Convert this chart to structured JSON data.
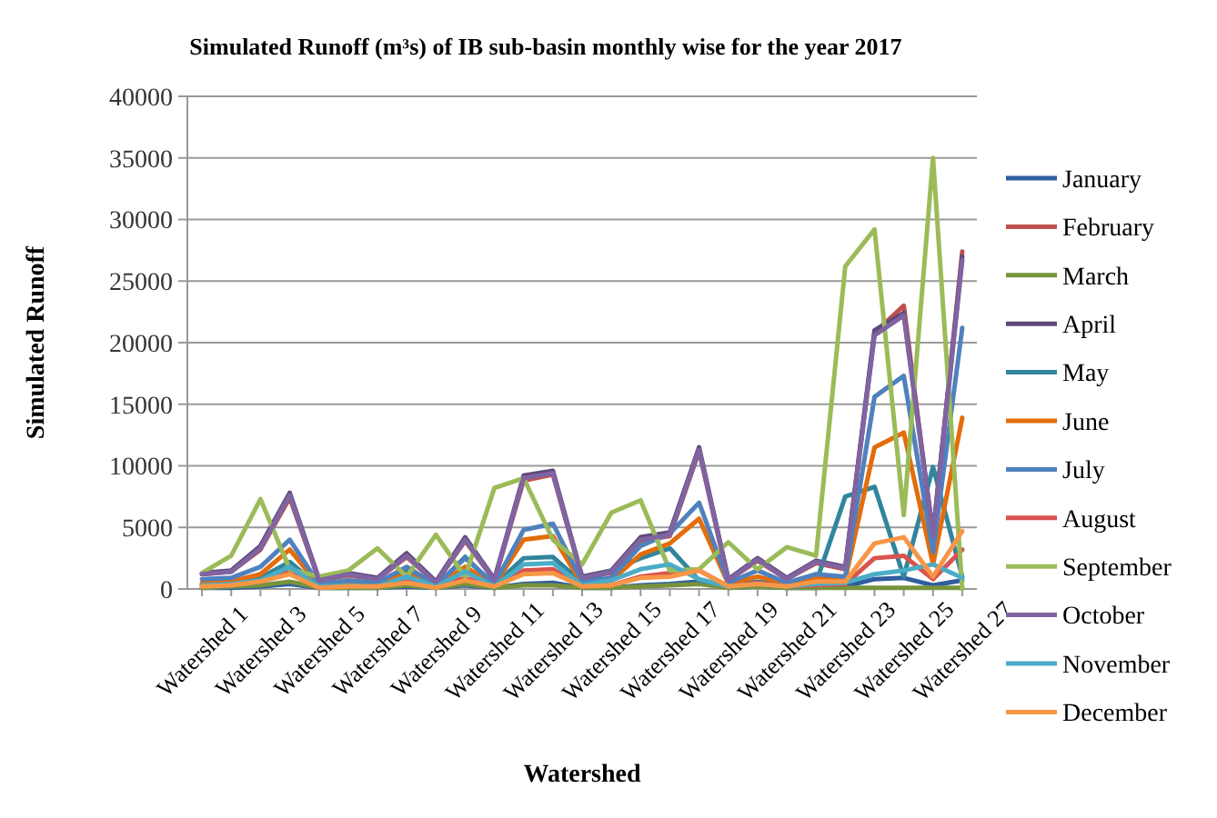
{
  "chart_data": {
    "type": "line",
    "title": "Simulated Runoff (m³s) of IB sub-basin monthly wise for the year 2017",
    "xlabel": "Watershed",
    "ylabel": "Simulated Runoff",
    "categories": [
      "Watershed 1",
      null,
      "Watershed 3",
      null,
      "Watershed 5",
      null,
      "Watershed 7",
      null,
      "Watershed 9",
      null,
      "Watershed 11",
      null,
      "Watershed 13",
      null,
      "Watershed 15",
      null,
      "Watershed 17",
      null,
      "Watershed 19",
      null,
      "Watershed 21",
      null,
      "Watershed 23",
      null,
      "Watershed 25",
      null,
      "Watershed 27"
    ],
    "ylim": [
      0,
      40000
    ],
    "yticks": [
      0,
      5000,
      10000,
      15000,
      20000,
      25000,
      30000,
      35000,
      40000
    ],
    "grid": "y",
    "legend": "right",
    "marker": "none",
    "line_style": "solid",
    "series": [
      {
        "name": "January",
        "color": "#2f5d9e",
        "values": [
          100,
          100,
          200,
          400,
          100,
          100,
          100,
          200,
          100,
          300,
          100,
          400,
          500,
          100,
          100,
          300,
          400,
          600,
          100,
          200,
          100,
          100,
          200,
          800,
          900,
          300,
          700
        ]
      },
      {
        "name": "February",
        "color": "#c0504d",
        "values": [
          1200,
          1400,
          3200,
          7400,
          700,
          1100,
          800,
          2600,
          500,
          3900,
          700,
          8800,
          9300,
          900,
          1300,
          3900,
          4300,
          11200,
          700,
          2300,
          800,
          2100,
          1600,
          20800,
          23000,
          4200,
          27400
        ]
      },
      {
        "name": "March",
        "color": "#77933c",
        "values": [
          100,
          200,
          300,
          600,
          100,
          100,
          100,
          300,
          100,
          400,
          100,
          300,
          300,
          100,
          100,
          200,
          300,
          400,
          100,
          200,
          100,
          100,
          100,
          100,
          100,
          100,
          100
        ]
      },
      {
        "name": "April",
        "color": "#5f497a",
        "values": [
          1300,
          1500,
          3500,
          7800,
          800,
          1300,
          900,
          2900,
          600,
          4200,
          800,
          9200,
          9600,
          1000,
          1500,
          4200,
          4600,
          11500,
          800,
          2500,
          900,
          2300,
          1800,
          21000,
          22400,
          4500,
          27000
        ]
      },
      {
        "name": "May",
        "color": "#31859c",
        "values": [
          400,
          500,
          900,
          2200,
          200,
          400,
          300,
          1500,
          200,
          2600,
          300,
          2500,
          2600,
          500,
          1500,
          2500,
          3300,
          700,
          300,
          600,
          300,
          500,
          7500,
          8300,
          1000,
          9900,
          1000
        ]
      },
      {
        "name": "June",
        "color": "#e46c0a",
        "values": [
          500,
          600,
          1200,
          3200,
          300,
          500,
          400,
          1200,
          200,
          1800,
          300,
          4000,
          4300,
          400,
          700,
          2800,
          3700,
          5700,
          400,
          1000,
          400,
          900,
          800,
          11500,
          12700,
          2000,
          13900
        ]
      },
      {
        "name": "July",
        "color": "#4f81bd",
        "values": [
          800,
          900,
          1800,
          4000,
          400,
          700,
          500,
          1800,
          300,
          2500,
          400,
          4800,
          5300,
          600,
          900,
          3500,
          4500,
          7000,
          500,
          1500,
          500,
          1200,
          1000,
          15600,
          17300,
          3000,
          21200
        ]
      },
      {
        "name": "August",
        "color": "#d9534f",
        "values": [
          300,
          300,
          700,
          1500,
          200,
          300,
          200,
          600,
          200,
          900,
          200,
          1500,
          1600,
          200,
          300,
          1000,
          1300,
          1500,
          200,
          500,
          200,
          300,
          400,
          2500,
          2700,
          800,
          3200
        ]
      },
      {
        "name": "September",
        "color": "#9bbb59",
        "values": [
          1300,
          2700,
          7300,
          1600,
          1000,
          1500,
          3300,
          1000,
          4400,
          1000,
          8200,
          9000,
          4000,
          2000,
          6200,
          7200,
          1500,
          1600,
          3800,
          1600,
          3400,
          2700,
          26200,
          29200,
          6000,
          35000,
          0
        ]
      },
      {
        "name": "October",
        "color": "#8064a2",
        "values": [
          1200,
          1400,
          3300,
          7600,
          700,
          1200,
          800,
          2700,
          500,
          4000,
          700,
          9000,
          9400,
          900,
          1400,
          4000,
          4400,
          11300,
          700,
          2400,
          800,
          2200,
          1700,
          20600,
          22200,
          4300,
          26700
        ]
      },
      {
        "name": "November",
        "color": "#4bacc6",
        "values": [
          300,
          400,
          700,
          1800,
          200,
          300,
          200,
          1000,
          200,
          1400,
          200,
          2000,
          2100,
          300,
          700,
          1600,
          2000,
          800,
          200,
          400,
          200,
          400,
          500,
          1200,
          1500,
          2000,
          900
        ]
      },
      {
        "name": "December",
        "color": "#f79646",
        "values": [
          200,
          300,
          600,
          1200,
          100,
          200,
          200,
          500,
          100,
          700,
          200,
          1200,
          1300,
          200,
          300,
          900,
          1000,
          1500,
          200,
          400,
          200,
          600,
          600,
          3700,
          4200,
          1000,
          4700
        ]
      }
    ]
  }
}
